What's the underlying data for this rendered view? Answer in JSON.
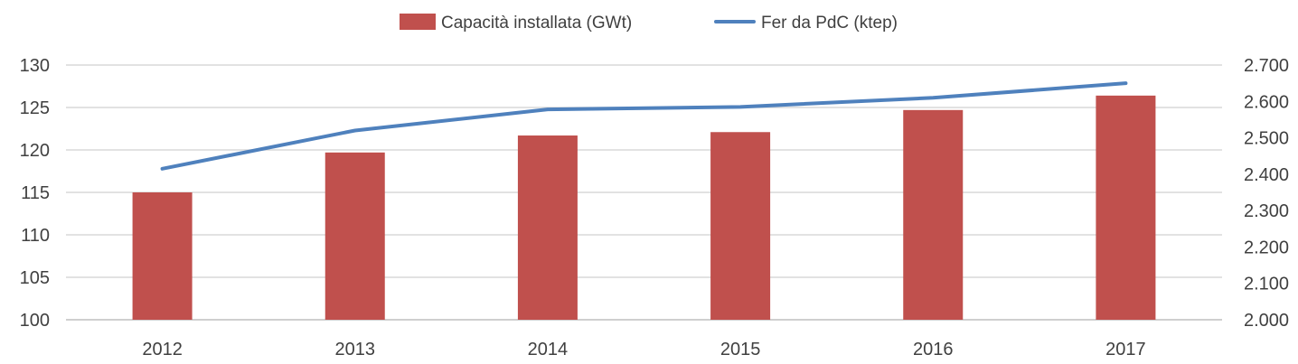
{
  "chart_data": {
    "type": "bar",
    "categories": [
      "2012",
      "2013",
      "2014",
      "2015",
      "2016",
      "2017"
    ],
    "series": [
      {
        "name": "Capacità installata (GWt)",
        "kind": "bar",
        "axis": "left",
        "color": "#c0504d",
        "values": [
          115.0,
          119.7,
          121.7,
          122.1,
          124.7,
          126.4
        ]
      },
      {
        "name": "Fer da PdC (ktep)",
        "kind": "line",
        "axis": "right",
        "color": "#4f81bd",
        "values": [
          2415,
          2520,
          2578,
          2585,
          2610,
          2650
        ]
      }
    ],
    "y_left": {
      "lim": [
        100,
        130
      ],
      "ticks": [
        100,
        105,
        110,
        115,
        120,
        125,
        130
      ],
      "tick_labels": [
        "100",
        "105",
        "110",
        "115",
        "120",
        "125",
        "130"
      ]
    },
    "y_right": {
      "lim": [
        2000,
        2700
      ],
      "ticks": [
        2000,
        2100,
        2200,
        2300,
        2400,
        2500,
        2600,
        2700
      ],
      "tick_labels": [
        "2.000",
        "2.100",
        "2.200",
        "2.300",
        "2.400",
        "2.500",
        "2.600",
        "2.700"
      ]
    },
    "grid": true,
    "legend": "top-center",
    "grid_color": "#d9d9d9"
  }
}
